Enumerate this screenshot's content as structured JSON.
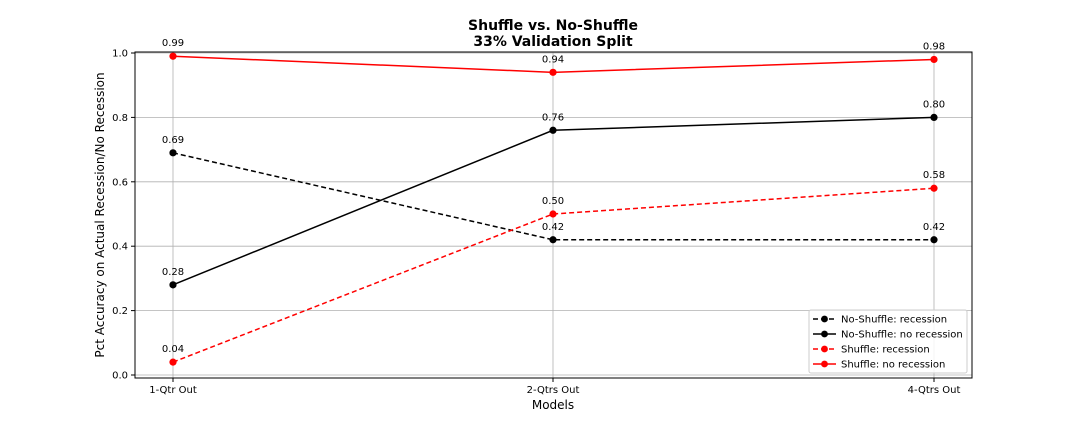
{
  "chart_data": {
    "type": "line",
    "title": [
      "Shuffle vs. No-Shuffle",
      "33% Validation Split"
    ],
    "xlabel": "Models",
    "ylabel": "Pct Accuracy on Actual Recession/No Recession",
    "categories": [
      "1-Qtr Out",
      "2-Qtrs Out",
      "4-Qtrs Out"
    ],
    "ylim": [
      0.0,
      1.0
    ],
    "yticks": [
      "0.0",
      "0.2",
      "0.4",
      "0.6",
      "0.8",
      "1.0"
    ],
    "grid": true,
    "legend_position": "bottom-right",
    "series": [
      {
        "name": "No-Shuffle: recession",
        "values": [
          0.69,
          0.42,
          0.42
        ],
        "labels": [
          "0.69",
          "0.42",
          "0.42"
        ],
        "color": "#000000",
        "dashed": true
      },
      {
        "name": "No-Shuffle: no recession",
        "values": [
          0.28,
          0.76,
          0.8
        ],
        "labels": [
          "0.28",
          "0.76",
          "0.80"
        ],
        "color": "#000000",
        "dashed": false
      },
      {
        "name": "Shuffle: recession",
        "values": [
          0.04,
          0.5,
          0.58
        ],
        "labels": [
          "0.04",
          "0.50",
          "0.58"
        ],
        "color": "#ff0000",
        "dashed": true
      },
      {
        "name": "Shuffle: no recession",
        "values": [
          0.99,
          0.94,
          0.98
        ],
        "labels": [
          "0.99",
          "0.94",
          "0.98"
        ],
        "color": "#ff0000",
        "dashed": false
      }
    ]
  }
}
